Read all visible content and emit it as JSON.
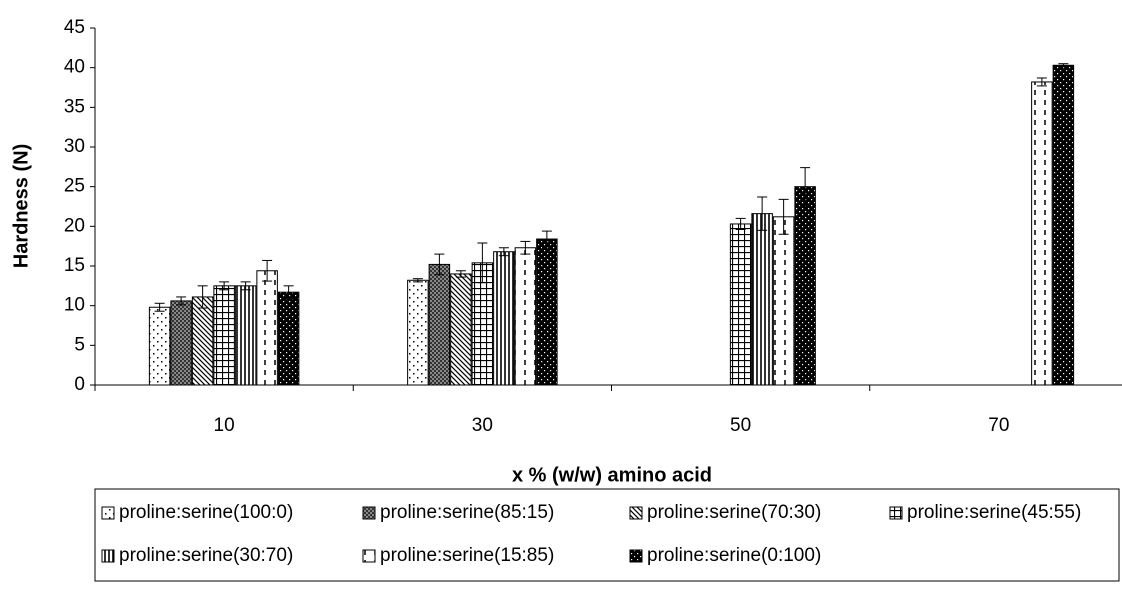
{
  "chart_data": {
    "type": "bar",
    "y_label": "Hardness (N)",
    "x_label": "x % (w/w) amino acid",
    "categories": [
      "10",
      "30",
      "50",
      "70"
    ],
    "ylim": [
      0,
      45
    ],
    "yticks": [
      0,
      5,
      10,
      15,
      20,
      25,
      30,
      35,
      40,
      45
    ],
    "series": [
      {
        "name": "proline:serine(100:0)",
        "values": [
          9.8,
          13.2,
          null,
          null
        ],
        "errors": [
          0.5,
          0.2,
          null,
          null
        ]
      },
      {
        "name": "proline:serine(85:15)",
        "values": [
          10.6,
          15.2,
          null,
          null
        ],
        "errors": [
          0.5,
          1.3,
          null,
          null
        ]
      },
      {
        "name": "proline:serine(70:30)",
        "values": [
          11.1,
          14.0,
          null,
          null
        ],
        "errors": [
          1.4,
          0.4,
          null,
          null
        ]
      },
      {
        "name": "proline:serine(45:55)",
        "values": [
          12.5,
          15.4,
          20.3,
          null
        ],
        "errors": [
          0.5,
          2.5,
          0.7,
          null
        ]
      },
      {
        "name": "proline:serine(30:70)",
        "values": [
          12.5,
          16.8,
          21.6,
          null
        ],
        "errors": [
          0.5,
          0.5,
          2.1,
          null
        ]
      },
      {
        "name": "proline:serine(15:85)",
        "values": [
          14.4,
          17.3,
          21.2,
          38.2
        ],
        "errors": [
          1.3,
          0.8,
          2.2,
          0.5
        ]
      },
      {
        "name": "proline:serine(0:100)",
        "values": [
          11.7,
          18.4,
          25.0,
          40.3
        ],
        "errors": [
          0.8,
          1.0,
          2.4,
          0.2
        ]
      }
    ]
  }
}
